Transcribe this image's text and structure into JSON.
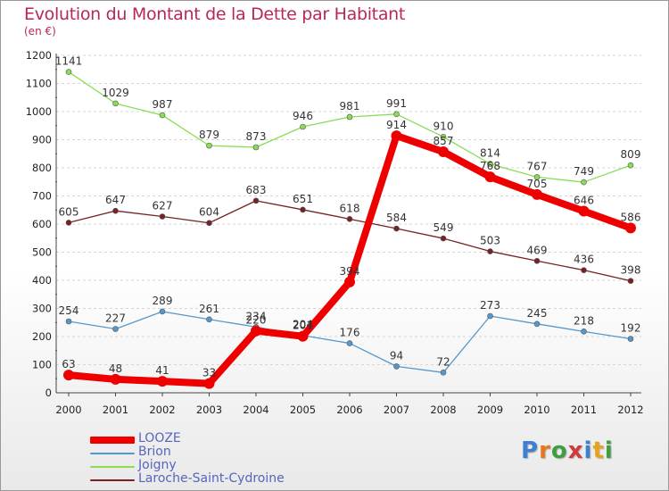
{
  "chart_data": {
    "type": "line",
    "title": "Evolution du Montant de la Dette par Habitant",
    "ylabel": "(en €)",
    "xlabel": "",
    "x": [
      "2000",
      "2001",
      "2002",
      "2003",
      "2004",
      "2005",
      "2006",
      "2007",
      "2008",
      "2009",
      "2010",
      "2011",
      "2012"
    ],
    "yticks": [
      0,
      100,
      200,
      300,
      400,
      500,
      600,
      700,
      800,
      900,
      1000,
      1100,
      1200
    ],
    "ylim": [
      0,
      1200
    ],
    "grid": "horizontal dashed",
    "legend_position": "bottom-left",
    "series": [
      {
        "name": "LOOZE",
        "color": "#ee0000",
        "values": [
          63,
          48,
          41,
          33,
          220,
          201,
          394,
          914,
          857,
          768,
          705,
          646,
          586
        ]
      },
      {
        "name": "Brion",
        "color": "#5599cc",
        "values": [
          254,
          227,
          289,
          261,
          234,
          204,
          176,
          94,
          72,
          273,
          245,
          218,
          192
        ]
      },
      {
        "name": "Joigny",
        "color": "#88dd55",
        "values": [
          1141,
          1029,
          987,
          879,
          873,
          946,
          981,
          991,
          910,
          814,
          767,
          749,
          809
        ]
      },
      {
        "name": "Laroche-Saint-Cydroine",
        "color": "#772222",
        "values": [
          605,
          647,
          627,
          604,
          683,
          651,
          618,
          584,
          549,
          503,
          469,
          436,
          398
        ]
      }
    ]
  },
  "logo": {
    "text": "Proxiti",
    "letters": [
      {
        "ch": "P",
        "color": "#3f7fd0"
      },
      {
        "ch": "r",
        "color": "#e8761e"
      },
      {
        "ch": "o",
        "color": "#3f9f3f"
      },
      {
        "ch": "x",
        "color": "#d23b3b"
      },
      {
        "ch": "i",
        "color": "#3f7fd0"
      },
      {
        "ch": "t",
        "color": "#e8a21e"
      },
      {
        "ch": "i",
        "color": "#3f9f3f"
      }
    ]
  }
}
